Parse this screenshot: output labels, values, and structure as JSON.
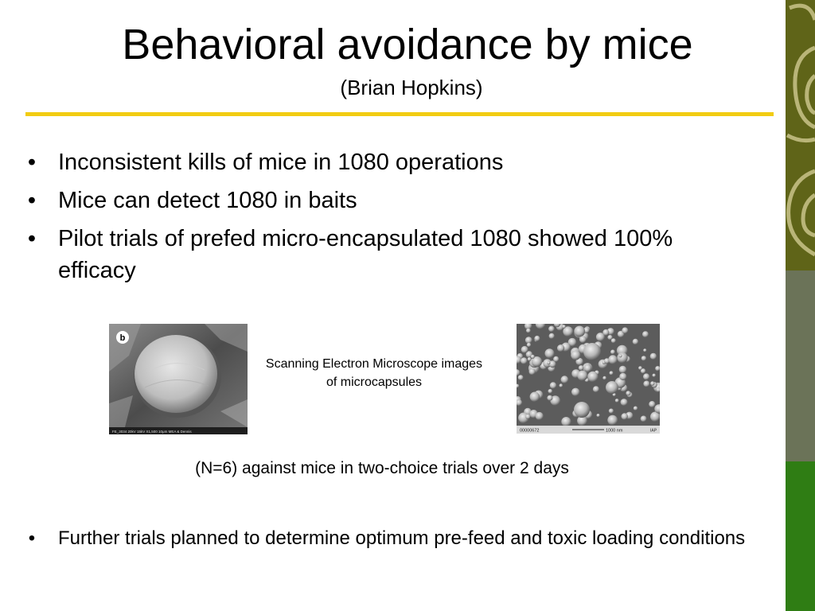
{
  "slide": {
    "title": "Behavioral avoidance by mice",
    "subtitle": "(Brian Hopkins)",
    "bullet_symbol": "•",
    "bullets": [
      "Inconsistent kills of mice in 1080 operations",
      "Mice can detect 1080 in baits",
      "Pilot trials of prefed micro-encapsulated 1080 showed 100% efficacy"
    ],
    "image_caption": "Scanning Electron Microscope images of microcapsules",
    "note": "(N=6) against mice in two-choice trials over 2 days",
    "bullets_bottom": [
      "Further trials planned to determine optimum pre-feed and toxic loading conditions"
    ],
    "sem_left": {
      "panel_label": "b",
      "footer_text": "FE_3034     20kV   15kV   X1,500   10μm   MEA & Dennis"
    },
    "sem_right": {
      "footer_id": "00000672",
      "footer_scale": "1000 nm",
      "footer_mark": "IAP"
    }
  },
  "colors": {
    "title_rule": "#f2cc12",
    "band_top": "#5f6418",
    "band_middle": "#6b7358",
    "band_bottom": "#2f7d14"
  }
}
